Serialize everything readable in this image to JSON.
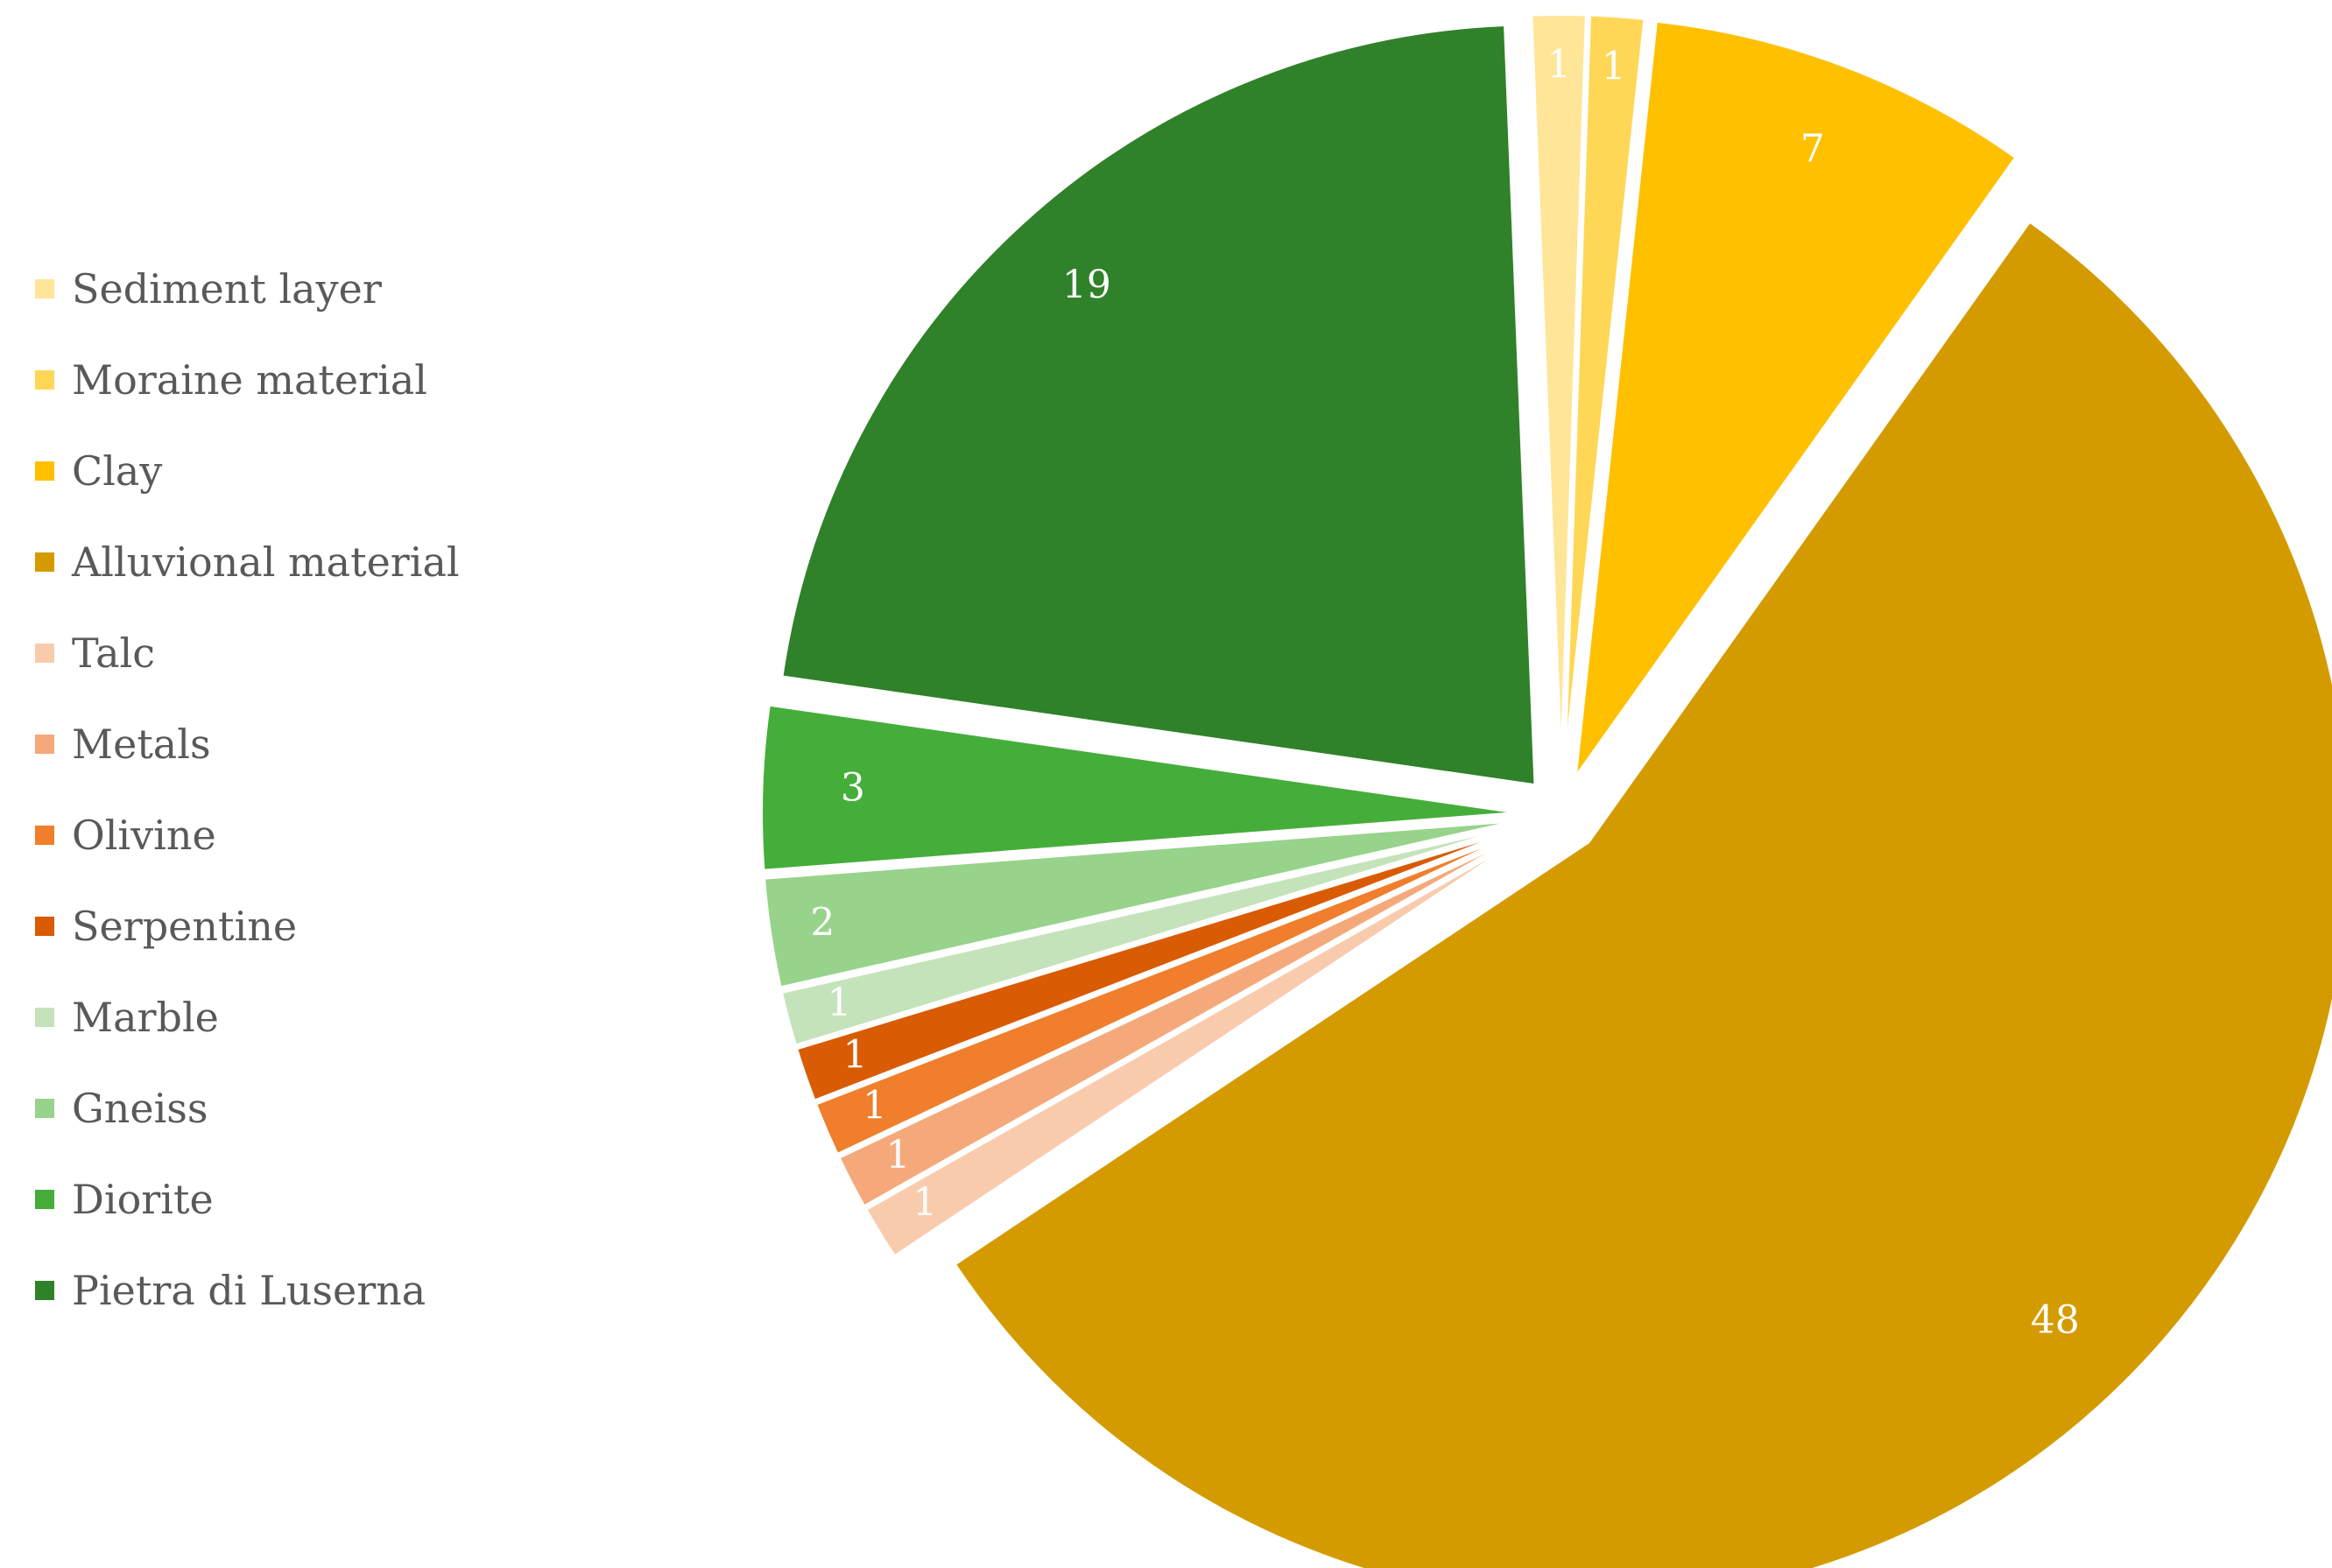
{
  "chart_data": {
    "type": "pie",
    "title": "",
    "exploded": true,
    "legend_position": "left",
    "slices": [
      {
        "label": "Alluvional material",
        "value": 48,
        "color": "#D49B00"
      },
      {
        "label": "Talc",
        "value": 1,
        "color": "#F9CBAD"
      },
      {
        "label": "Metals",
        "value": 1,
        "color": "#F5A97A"
      },
      {
        "label": "Olivine",
        "value": 1,
        "color": "#F07E2C"
      },
      {
        "label": "Serpentine",
        "value": 1,
        "color": "#D95B04"
      },
      {
        "label": "Marble",
        "value": 1,
        "color": "#C5E3BA"
      },
      {
        "label": "Gneiss",
        "value": 2,
        "color": "#97D38A"
      },
      {
        "label": "Diorite",
        "value": 3,
        "color": "#45AE3A"
      },
      {
        "label": "Pietra di Luserna",
        "value": 19,
        "color": "#2F8229"
      },
      {
        "label": "Sediment layer",
        "value": 1,
        "color": "#FFE597"
      },
      {
        "label": "Moraine material",
        "value": 1,
        "color": "#FFD756"
      },
      {
        "label": "Clay",
        "value": 7,
        "color": "#FFC000"
      }
    ],
    "legend": [
      {
        "label": "Sediment layer",
        "color": "#FFE597"
      },
      {
        "label": "Moraine material",
        "color": "#FFD756"
      },
      {
        "label": "Clay",
        "color": "#FFC000"
      },
      {
        "label": "Alluvional material",
        "color": "#D49B00"
      },
      {
        "label": "Talc",
        "color": "#F9CBAD"
      },
      {
        "label": "Metals",
        "color": "#F5A97A"
      },
      {
        "label": "Olivine",
        "color": "#F07E2C"
      },
      {
        "label": "Serpentine",
        "color": "#D95B04"
      },
      {
        "label": "Marble",
        "color": "#C5E3BA"
      },
      {
        "label": "Gneiss",
        "color": "#97D38A"
      },
      {
        "label": "Diorite",
        "color": "#45AE3A"
      },
      {
        "label": "Pietra di Luserna",
        "color": "#2F8229"
      }
    ]
  }
}
